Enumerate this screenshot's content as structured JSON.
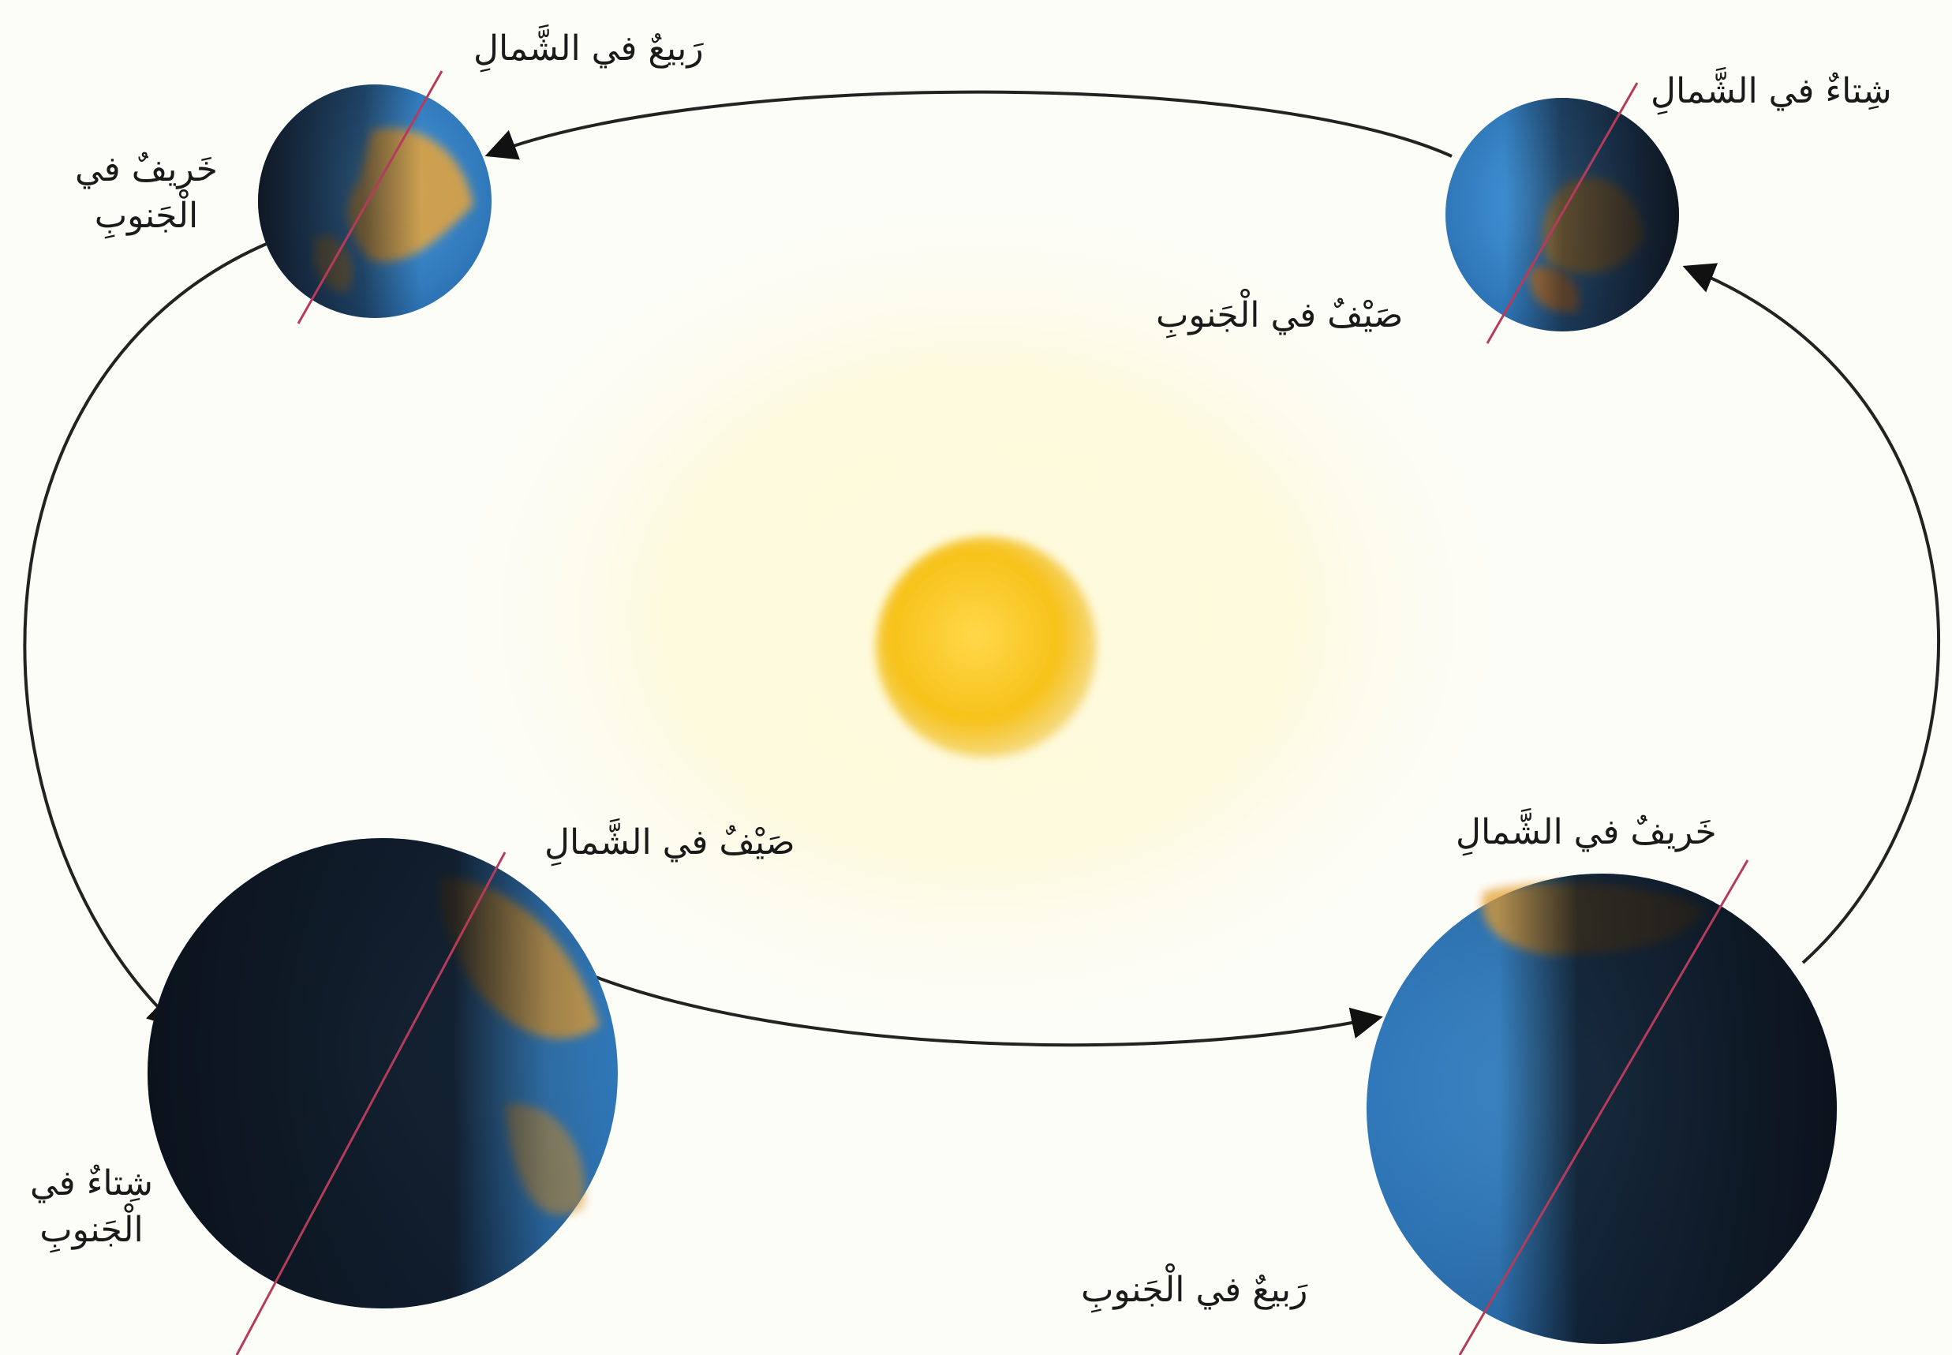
{
  "colors": {
    "background": "#fdfdf8",
    "sun": "#f7c21a",
    "sun_glow": "#fff3b0",
    "ocean": "#3b8fd6",
    "land": "#e7a43a",
    "night": "#12161f",
    "orbit": "#222222",
    "axis": "#b43c5a"
  },
  "labels": {
    "spring_north": "رَبيعٌ في الشَّمالِ",
    "autumn_south": {
      "line1": "خَريفٌ في",
      "line2": "الْجَنوبِ"
    },
    "winter_north": "شِتاءٌ في الشَّمالِ",
    "summer_south": "صَيْفٌ في الْجَنوبِ",
    "summer_north": "صَيْفٌ في الشَّمالِ",
    "winter_south": {
      "line1": "شِتاءٌ في",
      "line2": "الْجَنوبِ"
    },
    "autumn_north": "خَريفٌ في الشَّمالِ",
    "spring_south": "رَبيعٌ في الْجَنوبِ"
  },
  "icons": {
    "sun": "sun-icon",
    "earth": "earth-globe-icon",
    "orbit_arrow": "arrowhead-icon"
  }
}
